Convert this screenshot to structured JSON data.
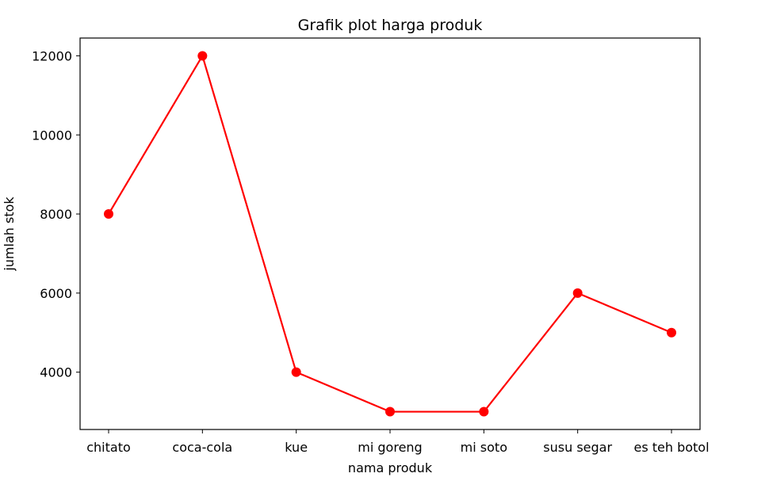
{
  "chart_data": {
    "type": "line",
    "title": "Grafik plot harga produk",
    "xlabel": "nama produk",
    "ylabel": "jumlah stok",
    "categories": [
      "chitato",
      "coca-cola",
      "kue",
      "mi goreng",
      "mi soto",
      "susu segar",
      "es teh botol"
    ],
    "series": [
      {
        "values": [
          8000,
          12000,
          4000,
          3000,
          3000,
          6000,
          5000
        ],
        "color": "#ff0000",
        "marker": "circle"
      }
    ],
    "yticks": [
      4000,
      6000,
      8000,
      10000,
      12000
    ],
    "ylim": [
      2550,
      12450
    ],
    "grid": false,
    "legend": "none"
  }
}
